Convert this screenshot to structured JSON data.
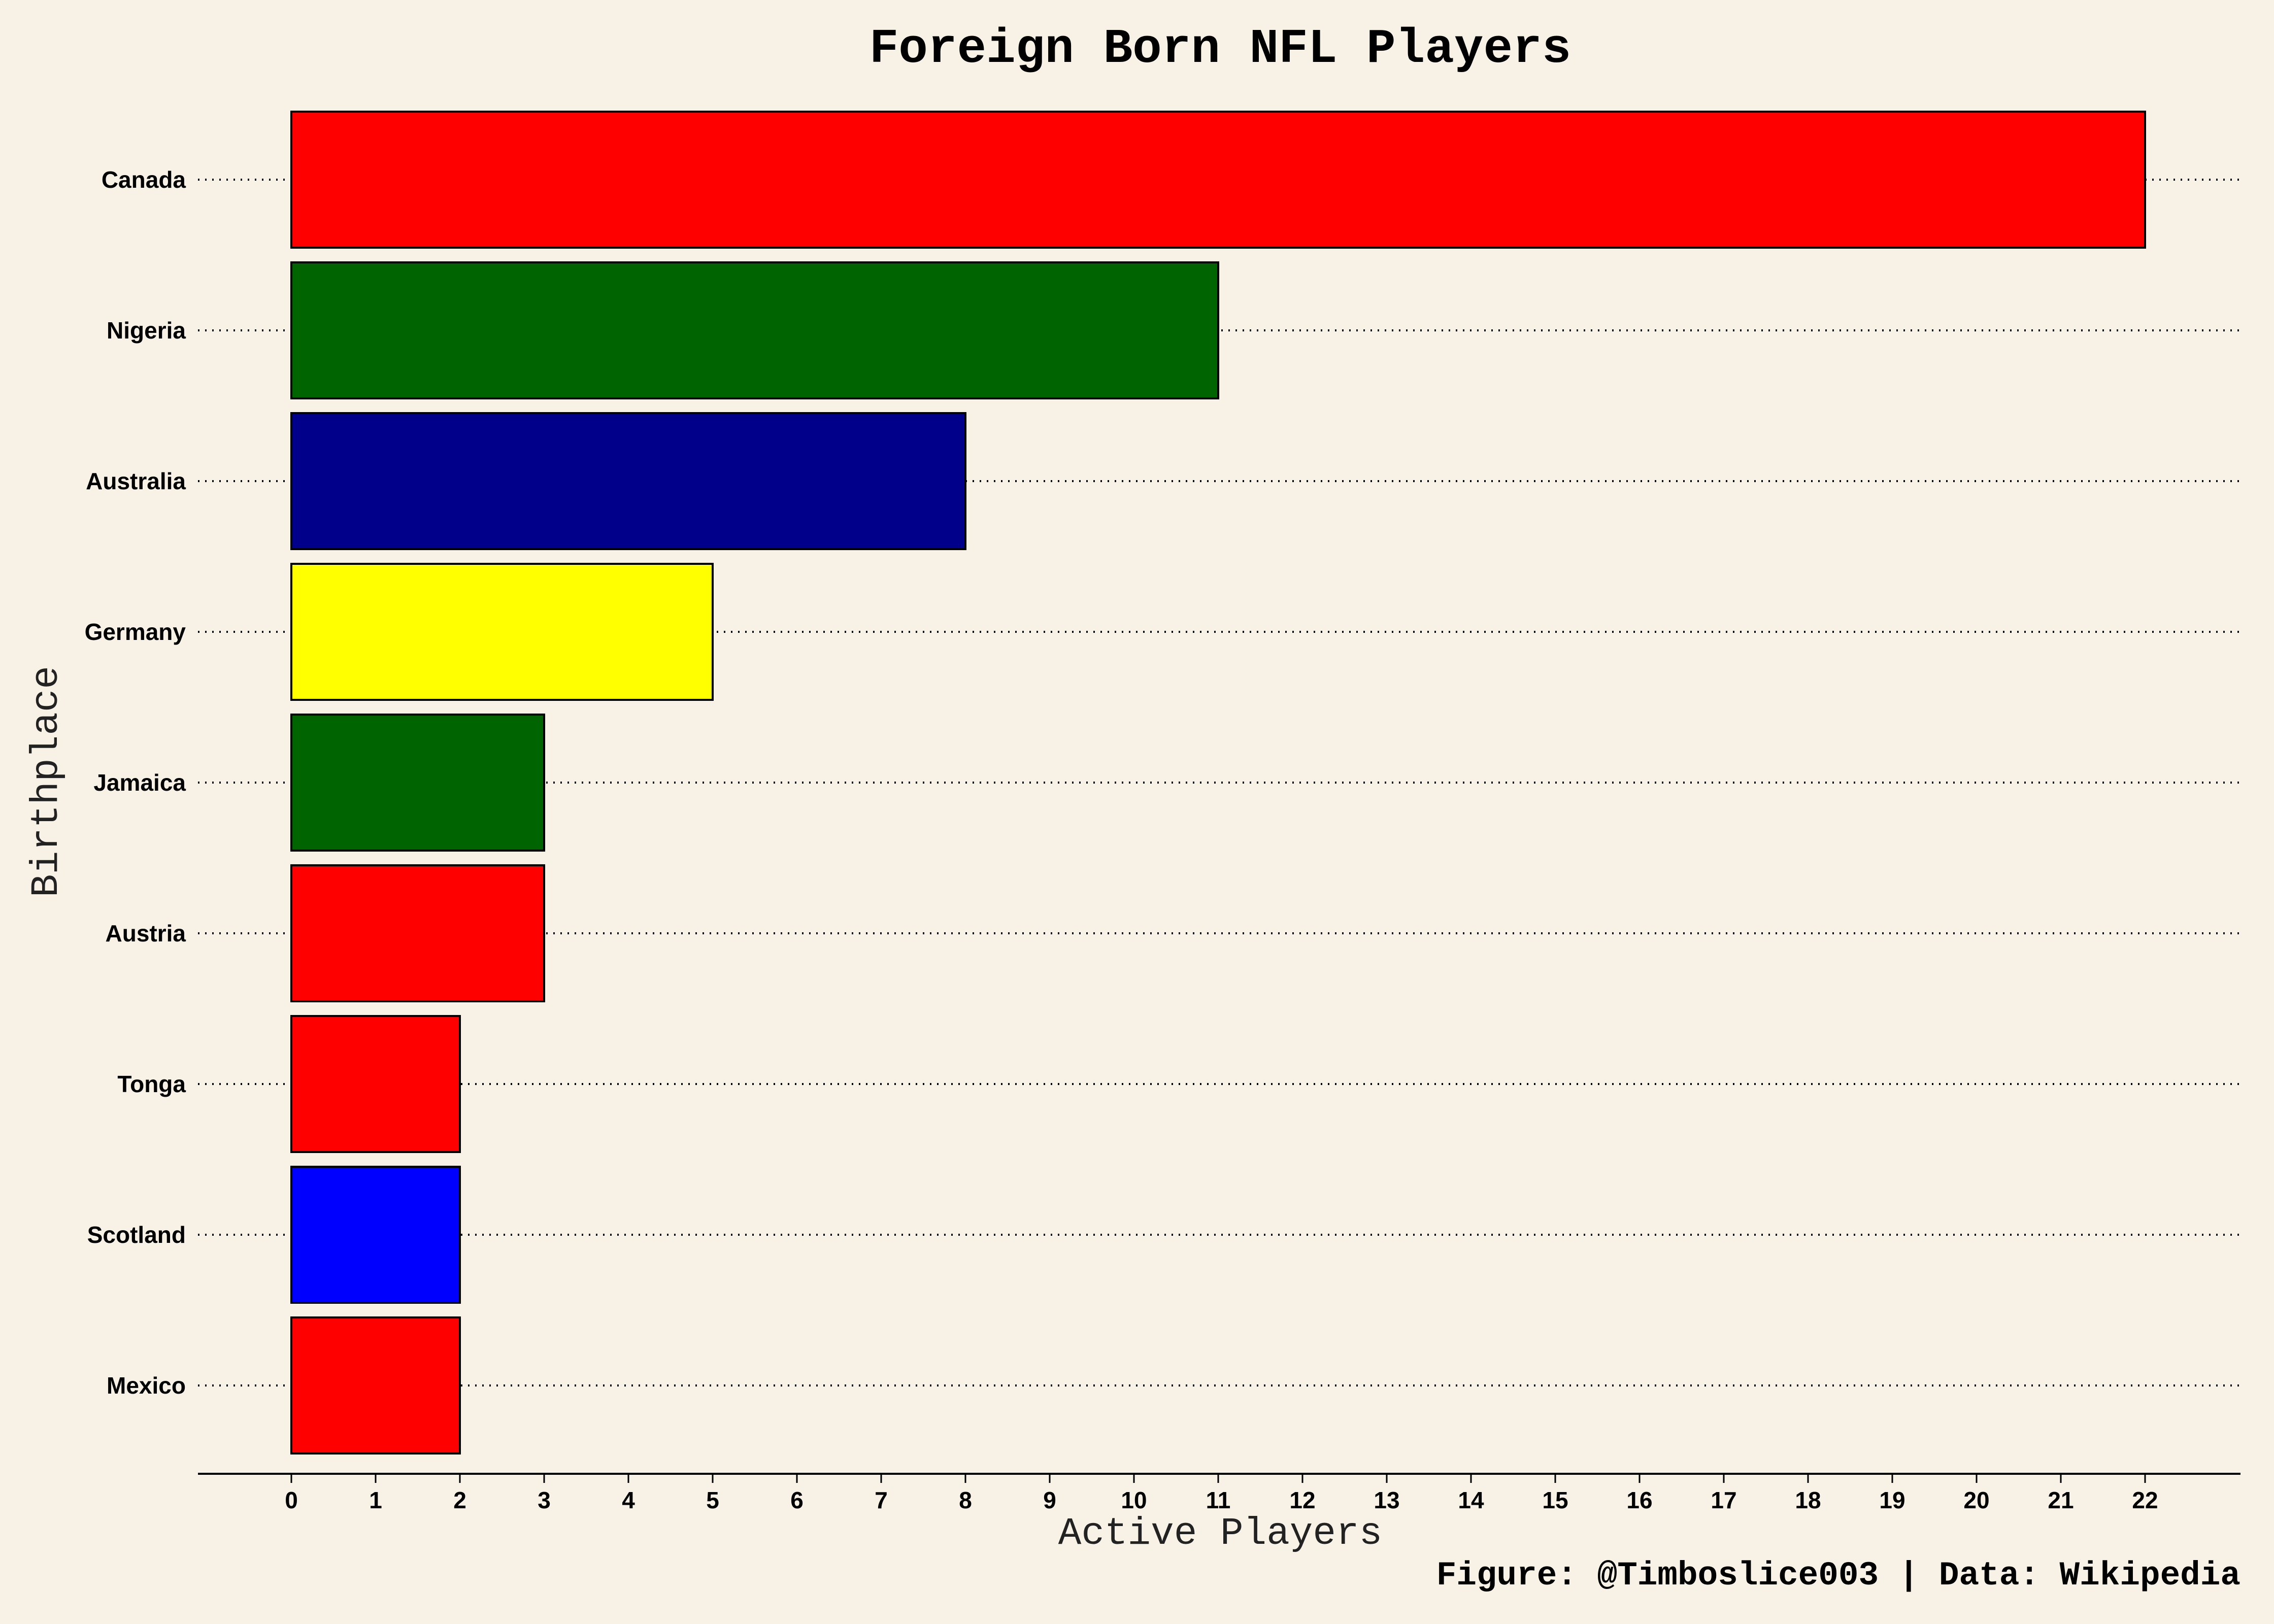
{
  "chart_data": {
    "type": "bar",
    "orientation": "horizontal",
    "title": "Foreign Born NFL Players",
    "xlabel": "Active Players",
    "ylabel": "Birthplace",
    "credit": "Figure: @Timboslice003 | Data: Wikipedia",
    "xlim": [
      0,
      22
    ],
    "xticks": [
      0,
      1,
      2,
      3,
      4,
      5,
      6,
      7,
      8,
      9,
      10,
      11,
      12,
      13,
      14,
      15,
      16,
      17,
      18,
      19,
      20,
      21,
      22
    ],
    "grid": "horizontal dotted",
    "categories": [
      "Canada",
      "Nigeria",
      "Australia",
      "Germany",
      "Jamaica",
      "Austria",
      "Tonga",
      "Scotland",
      "Mexico"
    ],
    "values": [
      22,
      11,
      8,
      5,
      3,
      3,
      2,
      2,
      2
    ],
    "colors": [
      "#ff0000",
      "#006400",
      "#00008b",
      "#ffff00",
      "#006400",
      "#ff0000",
      "#ff0000",
      "#0000ff",
      "#ff0000"
    ]
  },
  "colors": {
    "background": "#f7f2e5",
    "bar_edge": "#000000"
  }
}
